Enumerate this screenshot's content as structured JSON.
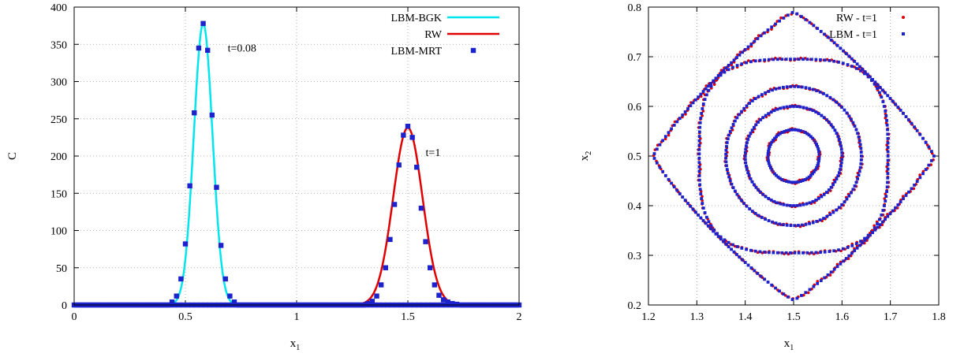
{
  "colors": {
    "bgk": "#00e5ee",
    "rw": "#e00000",
    "mrt": "#1c22cc",
    "grid": "#9a9a9a",
    "axes": "#000000"
  },
  "chart_data": [
    {
      "type": "line",
      "xlabel": "x",
      "xlabel_sub": "1",
      "ylabel": "C",
      "xlim": [
        0,
        2
      ],
      "ylim": [
        0,
        400
      ],
      "xticks": [
        0,
        0.5,
        1,
        1.5,
        2
      ],
      "xtick_labels": [
        "0",
        "0.5",
        "1",
        "1.5",
        "2"
      ],
      "yticks": [
        0,
        50,
        100,
        150,
        200,
        250,
        300,
        350,
        400
      ],
      "ytick_labels": [
        "0",
        "50",
        "100",
        "150",
        "200",
        "250",
        "300",
        "350",
        "400"
      ],
      "grid": true,
      "legend_position": "top-right",
      "annotations": [
        {
          "text": "t=0.08",
          "x": 0.69,
          "y": 340
        },
        {
          "text": "t=1",
          "x": 1.58,
          "y": 200
        }
      ],
      "series": [
        {
          "name": "LBM-BGK",
          "style": "line",
          "color": "#00e5ee",
          "peak_x": 0.58,
          "peak_y": 378,
          "sigma": 0.042
        },
        {
          "name": "RW",
          "style": "line",
          "color": "#e00000",
          "peak_x": 1.5,
          "peak_y": 238,
          "sigma": 0.066
        },
        {
          "name": "LBM-MRT",
          "style": "points",
          "color": "#1c22cc",
          "points": [
            [
              0.44,
              4
            ],
            [
              0.46,
              12
            ],
            [
              0.48,
              35
            ],
            [
              0.5,
              82
            ],
            [
              0.52,
              160
            ],
            [
              0.54,
              258
            ],
            [
              0.56,
              345
            ],
            [
              0.58,
              378
            ],
            [
              0.6,
              342
            ],
            [
              0.62,
              255
            ],
            [
              0.64,
              158
            ],
            [
              0.66,
              80
            ],
            [
              0.68,
              35
            ],
            [
              0.7,
              12
            ],
            [
              0.72,
              4
            ],
            [
              1.32,
              2
            ],
            [
              1.34,
              5
            ],
            [
              1.36,
              12
            ],
            [
              1.38,
              27
            ],
            [
              1.4,
              50
            ],
            [
              1.42,
              88
            ],
            [
              1.44,
              135
            ],
            [
              1.46,
              188
            ],
            [
              1.48,
              228
            ],
            [
              1.5,
              240
            ],
            [
              1.52,
              225
            ],
            [
              1.54,
              185
            ],
            [
              1.56,
              130
            ],
            [
              1.58,
              85
            ],
            [
              1.6,
              50
            ],
            [
              1.62,
              27
            ],
            [
              1.64,
              13
            ],
            [
              1.66,
              7
            ],
            [
              1.68,
              4
            ],
            [
              1.7,
              2
            ],
            [
              1.72,
              1
            ]
          ]
        }
      ]
    },
    {
      "type": "scatter",
      "xlabel": "x",
      "xlabel_sub": "1",
      "ylabel": "x",
      "ylabel_sub": "2",
      "xlim": [
        1.2,
        1.8
      ],
      "ylim": [
        0.2,
        0.8
      ],
      "xticks": [
        1.2,
        1.3,
        1.4,
        1.5,
        1.6,
        1.7,
        1.8
      ],
      "xtick_labels": [
        "1.2",
        "1.3",
        "1.4",
        "1.5",
        "1.6",
        "1.7",
        "1.8"
      ],
      "yticks": [
        0.2,
        0.3,
        0.4,
        0.5,
        0.6,
        0.7,
        0.8
      ],
      "ytick_labels": [
        "0.2",
        "0.3",
        "0.4",
        "0.5",
        "0.6",
        "0.7",
        "0.8"
      ],
      "grid": true,
      "legend_position": "top-right",
      "series": [
        {
          "name": "RW - t=1",
          "color": "#e00000",
          "marker": "dot"
        },
        {
          "name": "LBM - t=1",
          "color": "#1c22cc",
          "marker": "square"
        }
      ],
      "contours": [
        {
          "cx": 1.5,
          "cy": 0.5,
          "a": 0.053,
          "b": 0.053,
          "shape": "circle"
        },
        {
          "cx": 1.5,
          "cy": 0.5,
          "a": 0.1,
          "b": 0.1,
          "shape": "circle"
        },
        {
          "cx": 1.5,
          "cy": 0.5,
          "a": 0.14,
          "b": 0.14,
          "shape": "circle"
        },
        {
          "cx": 1.5,
          "cy": 0.5,
          "a": 0.195,
          "b": 0.195,
          "shape": "rounded-square"
        },
        {
          "cx": 1.5,
          "cy": 0.5,
          "a": 0.29,
          "b": 0.29,
          "shape": "diamond"
        }
      ]
    }
  ]
}
